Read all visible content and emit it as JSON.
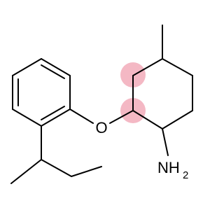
{
  "atoms": {
    "oxygen": "O",
    "amine": "NH",
    "amine_subscript": "2"
  }
}
